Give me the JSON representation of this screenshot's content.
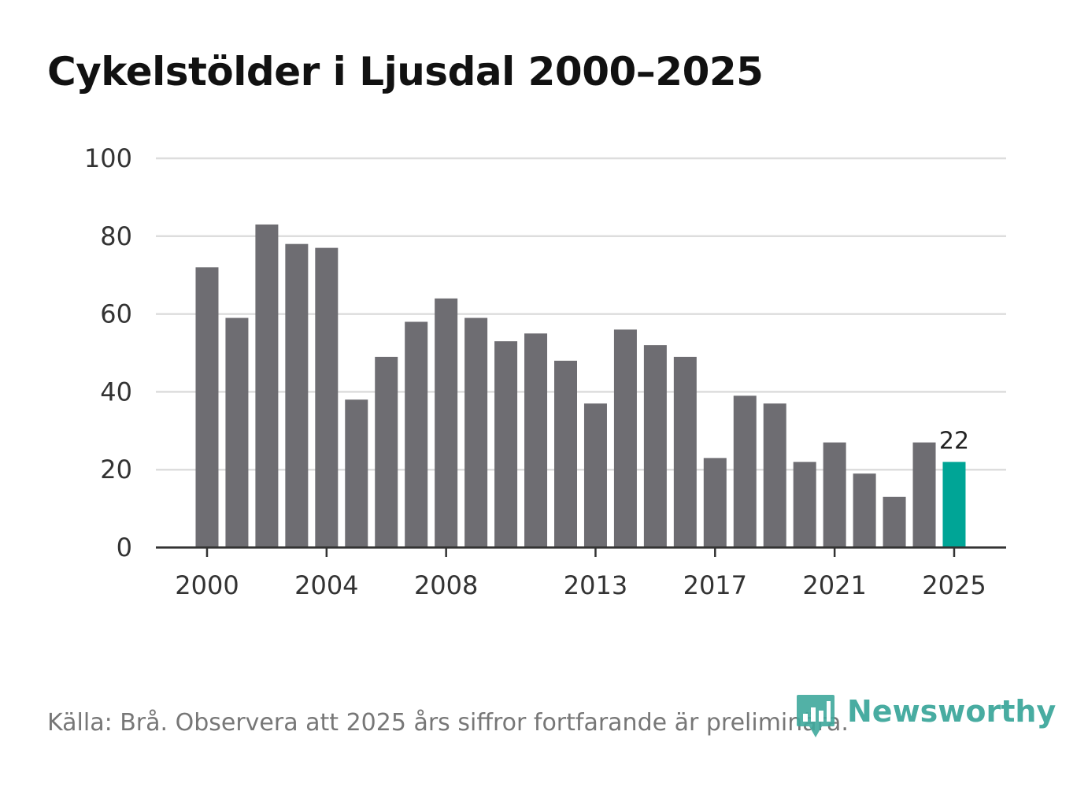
{
  "title": "Cykelstölder i Ljusdal 2000–2025",
  "source": "Källa: Brå. Observera att 2025 års siffror fortfarande är preliminära.",
  "brand": {
    "name": "Newsworthy",
    "icon": "bar-chart-pin-icon",
    "color": "#3fa89c"
  },
  "colors": {
    "bar": "#6e6d72",
    "highlight": "#00a596",
    "grid": "#dddddd",
    "axis": "#333333"
  },
  "chart_data": {
    "type": "bar",
    "title": "Cykelstölder i Ljusdal 2000–2025",
    "xlabel": "",
    "ylabel": "",
    "ylim": [
      0,
      100
    ],
    "yticks": [
      0,
      20,
      40,
      60,
      80,
      100
    ],
    "xtick_labels": [
      "2000",
      "2004",
      "2008",
      "2013",
      "2017",
      "2021",
      "2025"
    ],
    "categories": [
      "2000",
      "2001",
      "2002",
      "2003",
      "2004",
      "2005",
      "2006",
      "2007",
      "2008",
      "2009",
      "2010",
      "2011",
      "2012",
      "2013",
      "2014",
      "2015",
      "2016",
      "2017",
      "2018",
      "2019",
      "2020",
      "2021",
      "2022",
      "2023",
      "2024",
      "2025"
    ],
    "values": [
      72,
      59,
      83,
      78,
      77,
      38,
      49,
      58,
      64,
      59,
      53,
      55,
      48,
      37,
      56,
      52,
      49,
      23,
      39,
      37,
      22,
      27,
      19,
      13,
      27,
      22
    ],
    "highlight": {
      "category": "2025",
      "value": 22,
      "label": "22"
    },
    "grid": true
  }
}
